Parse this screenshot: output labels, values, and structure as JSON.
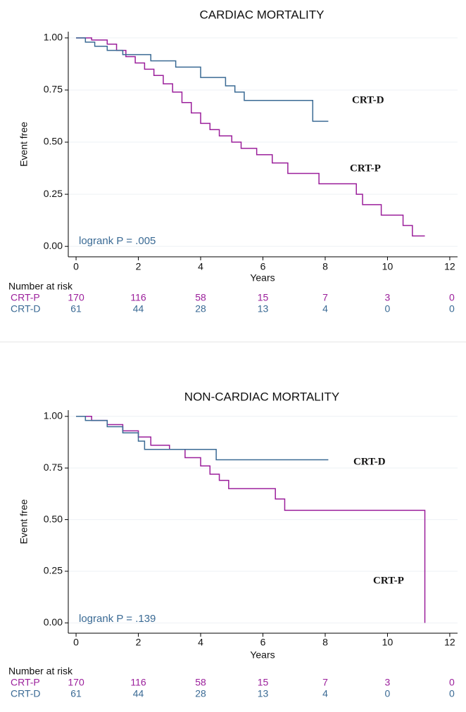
{
  "chart_data": [
    {
      "type": "step",
      "title": "CARDIAC MORTALITY",
      "x_label": "Years",
      "y_label": "Event free",
      "xlim": [
        -0.25,
        12.25
      ],
      "ylim": [
        -0.05,
        1.03
      ],
      "xticks": [
        0,
        2,
        4,
        6,
        8,
        10,
        12
      ],
      "yticks": [
        {
          "value": 0,
          "label": "0.00"
        },
        {
          "value": 0.25,
          "label": "0.25"
        },
        {
          "value": 0.5,
          "label": "0.50"
        },
        {
          "value": 0.75,
          "label": "0.75"
        },
        {
          "value": 1,
          "label": "1.00"
        }
      ],
      "grid": true,
      "annotation": "logrank P = .005",
      "at_risk_title": "Number at risk",
      "series": [
        {
          "name": "CRT-P",
          "color": "#9b1f9b",
          "x": [
            0,
            0.5,
            1,
            1.3,
            1.6,
            1.9,
            2.2,
            2.5,
            2.8,
            3.1,
            3.4,
            3.7,
            4,
            4.3,
            4.6,
            5,
            5.3,
            5.8,
            6.3,
            6.8,
            7.8,
            9,
            9.2,
            9.8,
            10.5,
            10.8,
            11.2
          ],
          "values": [
            1,
            0.99,
            0.97,
            0.94,
            0.91,
            0.88,
            0.85,
            0.82,
            0.78,
            0.74,
            0.69,
            0.64,
            0.59,
            0.56,
            0.53,
            0.5,
            0.47,
            0.44,
            0.4,
            0.35,
            0.3,
            0.25,
            0.2,
            0.15,
            0.1,
            0.05,
            0.05
          ],
          "at_risk": [
            170,
            116,
            58,
            15,
            7,
            3,
            0
          ]
        },
        {
          "name": "CRT-D",
          "color": "#3a6a94",
          "x": [
            0,
            0.3,
            0.6,
            1,
            1.5,
            2.4,
            3.2,
            4,
            4.8,
            5.1,
            5.4,
            7.6,
            8.1
          ],
          "values": [
            1,
            0.98,
            0.96,
            0.94,
            0.92,
            0.89,
            0.86,
            0.81,
            0.77,
            0.74,
            0.7,
            0.6,
            0.6
          ],
          "at_risk": [
            61,
            44,
            28,
            13,
            4,
            0,
            0
          ]
        }
      ]
    },
    {
      "type": "step",
      "title": "NON-CARDIAC MORTALITY",
      "x_label": "Years",
      "y_label": "Event free",
      "xlim": [
        -0.25,
        12.25
      ],
      "ylim": [
        -0.05,
        1.03
      ],
      "xticks": [
        0,
        2,
        4,
        6,
        8,
        10,
        12
      ],
      "yticks": [
        {
          "value": 0,
          "label": "0.00"
        },
        {
          "value": 0.25,
          "label": "0.25"
        },
        {
          "value": 0.5,
          "label": "0.50"
        },
        {
          "value": 0.75,
          "label": "0.75"
        },
        {
          "value": 1,
          "label": "1.00"
        }
      ],
      "grid": true,
      "annotation": "logrank P = .139",
      "at_risk_title": "Number at risk",
      "series": [
        {
          "name": "CRT-P",
          "color": "#9b1f9b",
          "x": [
            0,
            0.5,
            1,
            1.5,
            2,
            2.4,
            3,
            3.5,
            4,
            4.3,
            4.6,
            4.9,
            6.4,
            6.7,
            11.2,
            11.2
          ],
          "values": [
            1,
            0.98,
            0.96,
            0.93,
            0.9,
            0.86,
            0.84,
            0.8,
            0.76,
            0.72,
            0.69,
            0.65,
            0.6,
            0.545,
            0.545,
            0
          ],
          "at_risk": [
            170,
            116,
            58,
            15,
            7,
            3,
            0
          ]
        },
        {
          "name": "CRT-D",
          "color": "#3a6a94",
          "x": [
            0,
            0.3,
            1,
            1.5,
            2,
            2.2,
            4.5,
            8.1
          ],
          "values": [
            1,
            0.98,
            0.95,
            0.92,
            0.88,
            0.84,
            0.79,
            0.79
          ],
          "at_risk": [
            61,
            44,
            28,
            13,
            4,
            0,
            0
          ]
        }
      ]
    }
  ]
}
